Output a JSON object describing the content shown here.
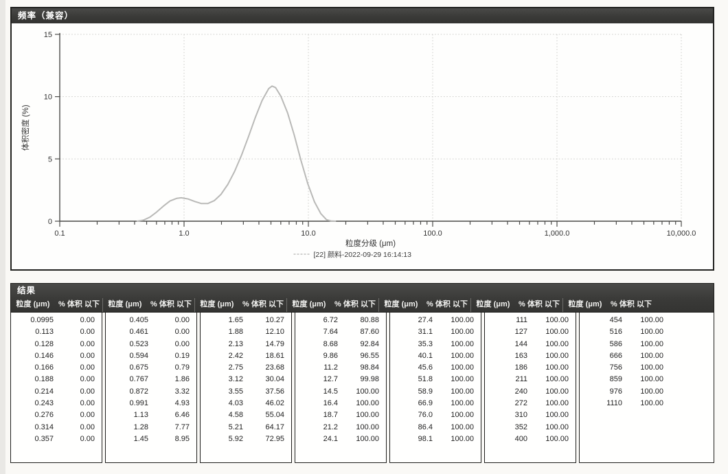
{
  "frequency_panel": {
    "title": "频率（兼容）"
  },
  "chart_data": {
    "type": "line",
    "title": "",
    "xlabel": "粒度分级 (μm)",
    "ylabel": "体积密度 (%)",
    "x_scale": "log",
    "xlim": [
      0.1,
      10000
    ],
    "ylim": [
      0,
      15
    ],
    "x_ticks": [
      {
        "value": 0.1,
        "label": "0.1"
      },
      {
        "value": 1.0,
        "label": "1.0"
      },
      {
        "value": 10.0,
        "label": "10.0"
      },
      {
        "value": 100.0,
        "label": "100.0"
      },
      {
        "value": 1000.0,
        "label": "1,000.0"
      },
      {
        "value": 10000.0,
        "label": "10,000.0"
      }
    ],
    "y_ticks": [
      0,
      5,
      10,
      15
    ],
    "grid": "dotted",
    "legend_position": "bottom-center",
    "series": [
      {
        "name": "[22] 颜料-2022-09-29 16:14:13",
        "color": "#b9b9b7",
        "points": [
          [
            0.42,
            0
          ],
          [
            0.47,
            0.08
          ],
          [
            0.53,
            0.32
          ],
          [
            0.6,
            0.72
          ],
          [
            0.68,
            1.2
          ],
          [
            0.77,
            1.62
          ],
          [
            0.87,
            1.83
          ],
          [
            0.95,
            1.88
          ],
          [
            1.08,
            1.78
          ],
          [
            1.22,
            1.58
          ],
          [
            1.38,
            1.42
          ],
          [
            1.55,
            1.42
          ],
          [
            1.75,
            1.65
          ],
          [
            1.98,
            2.15
          ],
          [
            2.25,
            2.95
          ],
          [
            2.55,
            4.0
          ],
          [
            2.9,
            5.3
          ],
          [
            3.3,
            6.8
          ],
          [
            3.75,
            8.35
          ],
          [
            4.25,
            9.7
          ],
          [
            4.8,
            10.65
          ],
          [
            5.1,
            10.85
          ],
          [
            5.45,
            10.72
          ],
          [
            6.0,
            10.05
          ],
          [
            6.8,
            8.7
          ],
          [
            7.7,
            6.9
          ],
          [
            8.7,
            4.9
          ],
          [
            9.9,
            3.0
          ],
          [
            11.2,
            1.55
          ],
          [
            12.6,
            0.6
          ],
          [
            14.0,
            0.12
          ],
          [
            15.2,
            0.02
          ],
          [
            16.5,
            0
          ]
        ]
      }
    ]
  },
  "results_panel": {
    "title": "结果",
    "headers": [
      "粒度 (μm)",
      "% 体积 以下"
    ],
    "groups": [
      [
        [
          "0.0995",
          "0.00"
        ],
        [
          "0.113",
          "0.00"
        ],
        [
          "0.128",
          "0.00"
        ],
        [
          "0.146",
          "0.00"
        ],
        [
          "0.166",
          "0.00"
        ],
        [
          "0.188",
          "0.00"
        ],
        [
          "0.214",
          "0.00"
        ],
        [
          "0.243",
          "0.00"
        ],
        [
          "0.276",
          "0.00"
        ],
        [
          "0.314",
          "0.00"
        ],
        [
          "0.357",
          "0.00"
        ]
      ],
      [
        [
          "0.405",
          "0.00"
        ],
        [
          "0.461",
          "0.00"
        ],
        [
          "0.523",
          "0.00"
        ],
        [
          "0.594",
          "0.19"
        ],
        [
          "0.675",
          "0.79"
        ],
        [
          "0.767",
          "1.86"
        ],
        [
          "0.872",
          "3.32"
        ],
        [
          "0.991",
          "4.93"
        ],
        [
          "1.13",
          "6.46"
        ],
        [
          "1.28",
          "7.77"
        ],
        [
          "1.45",
          "8.95"
        ]
      ],
      [
        [
          "1.65",
          "10.27"
        ],
        [
          "1.88",
          "12.10"
        ],
        [
          "2.13",
          "14.79"
        ],
        [
          "2.42",
          "18.61"
        ],
        [
          "2.75",
          "23.68"
        ],
        [
          "3.12",
          "30.04"
        ],
        [
          "3.55",
          "37.56"
        ],
        [
          "4.03",
          "46.02"
        ],
        [
          "4.58",
          "55.04"
        ],
        [
          "5.21",
          "64.17"
        ],
        [
          "5.92",
          "72.95"
        ]
      ],
      [
        [
          "6.72",
          "80.88"
        ],
        [
          "7.64",
          "87.60"
        ],
        [
          "8.68",
          "92.84"
        ],
        [
          "9.86",
          "96.55"
        ],
        [
          "11.2",
          "98.84"
        ],
        [
          "12.7",
          "99.98"
        ],
        [
          "14.5",
          "100.00"
        ],
        [
          "16.4",
          "100.00"
        ],
        [
          "18.7",
          "100.00"
        ],
        [
          "21.2",
          "100.00"
        ],
        [
          "24.1",
          "100.00"
        ]
      ],
      [
        [
          "27.4",
          "100.00"
        ],
        [
          "31.1",
          "100.00"
        ],
        [
          "35.3",
          "100.00"
        ],
        [
          "40.1",
          "100.00"
        ],
        [
          "45.6",
          "100.00"
        ],
        [
          "51.8",
          "100.00"
        ],
        [
          "58.9",
          "100.00"
        ],
        [
          "66.9",
          "100.00"
        ],
        [
          "76.0",
          "100.00"
        ],
        [
          "86.4",
          "100.00"
        ],
        [
          "98.1",
          "100.00"
        ]
      ],
      [
        [
          "111",
          "100.00"
        ],
        [
          "127",
          "100.00"
        ],
        [
          "144",
          "100.00"
        ],
        [
          "163",
          "100.00"
        ],
        [
          "186",
          "100.00"
        ],
        [
          "211",
          "100.00"
        ],
        [
          "240",
          "100.00"
        ],
        [
          "272",
          "100.00"
        ],
        [
          "310",
          "100.00"
        ],
        [
          "352",
          "100.00"
        ],
        [
          "400",
          "100.00"
        ]
      ],
      [
        [
          "454",
          "100.00"
        ],
        [
          "516",
          "100.00"
        ],
        [
          "586",
          "100.00"
        ],
        [
          "666",
          "100.00"
        ],
        [
          "756",
          "100.00"
        ],
        [
          "859",
          "100.00"
        ],
        [
          "976",
          "100.00"
        ],
        [
          "1110",
          "100.00"
        ]
      ]
    ]
  }
}
